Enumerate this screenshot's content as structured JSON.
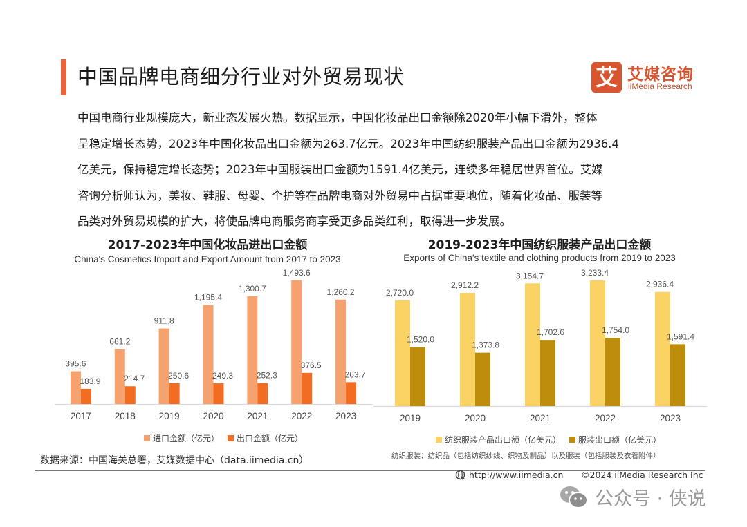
{
  "header": {
    "title": "中国品牌电商细分行业对外贸易现状",
    "logo_cn": "艾媒咨询",
    "logo_en": "iiMedia Research",
    "logo_mark": "艾",
    "accent_color": "#e8643a"
  },
  "paragraph": [
    "中国电商行业规模庞大，新业态发展火热。数据显示，中国化妆品出口金额除2020年小幅下滑外，整体",
    "呈稳定增长态势，2023年中国化妆品出口金额为263.7亿元。2023年中国纺织服装产品出口金额为2936.4",
    "亿美元，保持稳定增长态势；2023年中国服装出口金额为1591.4亿美元，连续多年稳居世界首位。艾媒",
    "咨询分析师认为，美妆、鞋服、母婴、个护等在品牌电商对外贸易中占据重要地位，随着化妆品、服装等",
    "品类对外贸易规模的扩大，将使品牌电商服务商享受更多品类红利，取得进一步发展。"
  ],
  "chart_data": [
    {
      "type": "bar",
      "title": "2017-2023年中国化妆品进出口金额",
      "subtitle": "China's Cosmetics Import and Export Amount from 2017 to 2023",
      "categories": [
        "2017",
        "2018",
        "2019",
        "2020",
        "2021",
        "2022",
        "2023"
      ],
      "series": [
        {
          "name": "进口金额（亿元）",
          "color": "#f6a26e",
          "values": [
            395.6,
            661.2,
            911.8,
            1195.4,
            1300.7,
            1493.6,
            1260.2
          ],
          "labels": [
            "395.6",
            "661.2",
            "911.8",
            "1,195.4",
            "1,300.7",
            "1,493.6",
            "1,260.2"
          ]
        },
        {
          "name": "出口金额（亿元）",
          "color": "#f26d21",
          "values": [
            183.9,
            214.7,
            250.6,
            249.3,
            252.3,
            376.5,
            263.7
          ],
          "labels": [
            "183.9",
            "214.7",
            "250.6",
            "249.3",
            "252.3",
            "376.5",
            "263.7"
          ]
        }
      ],
      "xlabel": "",
      "ylabel": "",
      "ylim": [
        0,
        1500
      ],
      "grid": false,
      "legend": "bottom"
    },
    {
      "type": "bar",
      "title": "2019-2023年中国纺织服装产品出口金额",
      "subtitle": "Exports of China's textile and clothing products from 2019 to 2023",
      "categories": [
        "2019",
        "2020",
        "2021",
        "2022",
        "2023"
      ],
      "series": [
        {
          "name": "纺织服装产品出口额（亿美元）",
          "color": "#fbd364",
          "values": [
            2720.0,
            2912.2,
            3154.7,
            3233.4,
            2936.4
          ],
          "labels": [
            "2,720.0",
            "2,912.2",
            "3,154.7",
            "3,233.4",
            "2,936.4"
          ]
        },
        {
          "name": "服装出口额（亿美元）",
          "color": "#bf8d0c",
          "values": [
            1520.0,
            1373.8,
            1702.6,
            1754.0,
            1591.4
          ],
          "labels": [
            "1,520.0",
            "1,373.8",
            "1,702.6",
            "1,754.0",
            "1,591.4"
          ]
        }
      ],
      "xlabel": "",
      "ylabel": "",
      "ylim": [
        0,
        3250
      ],
      "grid": false,
      "legend": "bottom",
      "note": "纺织服装：纺织品（包括纺织纱线、织物及制品）以及服装（包括服装及衣着附件）"
    }
  ],
  "footer": {
    "source": "数据来源：中国海关总署，艾媒数据中心（data.iimedia.cn）",
    "url": "http://www.iimedia.cn",
    "copyright": "©2024  iiMedia Research  Inc",
    "watermark": "公众号 · 侠说"
  }
}
